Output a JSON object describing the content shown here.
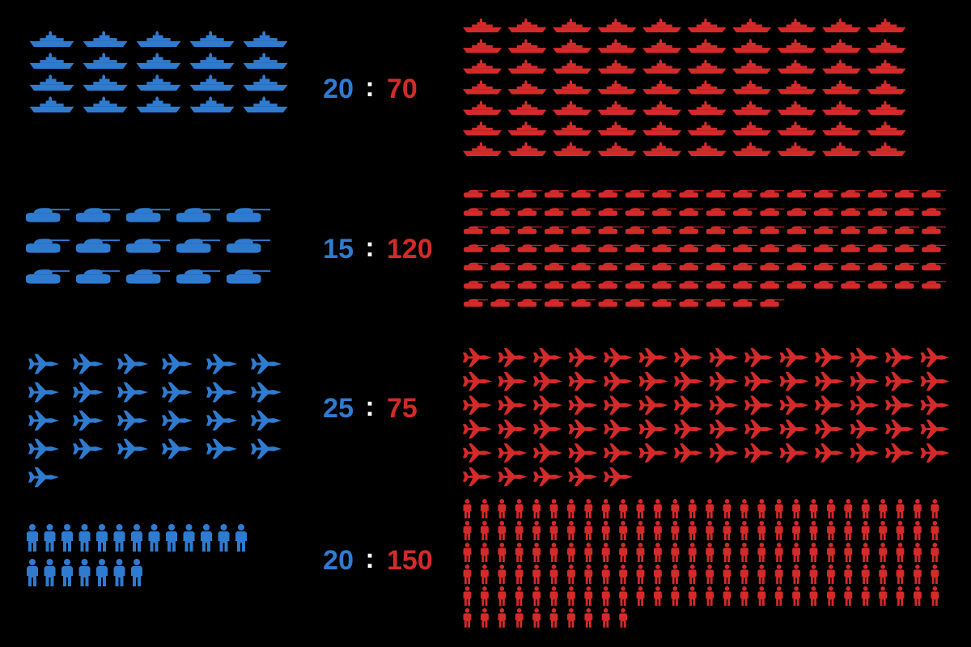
{
  "chart_data": {
    "type": "pictogram",
    "separator": ":",
    "colors": [
      "#2f7bd0",
      "#d42a2a"
    ],
    "separator_color": "#ffffff",
    "groups": [
      {
        "icon": "ship",
        "values": [
          20,
          70
        ]
      },
      {
        "icon": "tank",
        "values": [
          15,
          120
        ]
      },
      {
        "icon": "plane",
        "values": [
          25,
          75
        ]
      },
      {
        "icon": "person",
        "values": [
          20,
          150
        ]
      }
    ]
  }
}
